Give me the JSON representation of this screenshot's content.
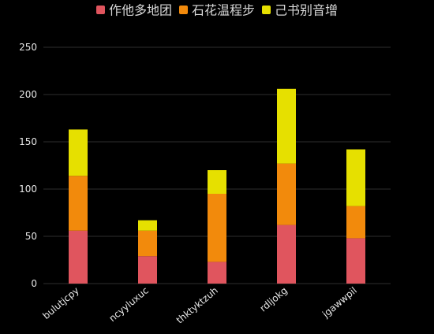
{
  "chart_data": {
    "type": "bar",
    "stacked": true,
    "categories": [
      "bulutjcpy",
      "ncyyluxuc",
      "thktyktzuh",
      "rdljokg",
      "jgawwpil"
    ],
    "series": [
      {
        "name": "作他多地团",
        "color": "#e0555e",
        "values": [
          56,
          29,
          23,
          62,
          48
        ]
      },
      {
        "name": "石花温程步",
        "color": "#f28a0c",
        "values": [
          58,
          27,
          72,
          65,
          34
        ]
      },
      {
        "name": "己书别音增",
        "color": "#e6e000",
        "values": [
          49,
          11,
          25,
          79,
          60
        ]
      }
    ],
    "yticks": [
      0,
      50,
      100,
      150,
      200,
      250
    ],
    "ylim": [
      0,
      250
    ],
    "grid": true,
    "legend_position": "top-center",
    "title": "",
    "xlabel": "",
    "ylabel": ""
  }
}
